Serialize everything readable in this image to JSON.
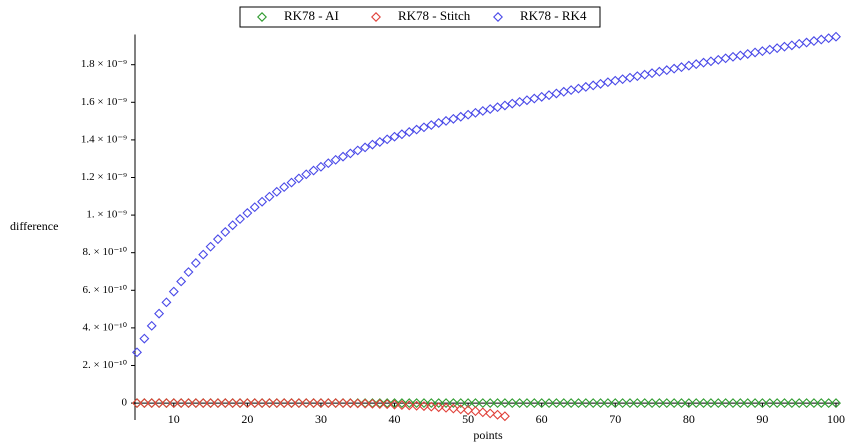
{
  "chart_data": {
    "type": "scatter",
    "xlabel": "points",
    "ylabel": "difference",
    "legend": "top",
    "x": [
      5,
      6,
      7,
      8,
      9,
      10,
      11,
      12,
      13,
      14,
      15,
      16,
      17,
      18,
      19,
      20,
      21,
      22,
      23,
      24,
      25,
      26,
      27,
      28,
      29,
      30,
      31,
      32,
      33,
      34,
      35,
      36,
      37,
      38,
      39,
      40,
      41,
      42,
      43,
      44,
      45,
      46,
      47,
      48,
      49,
      50,
      51,
      52,
      53,
      54,
      55,
      56,
      57,
      58,
      59,
      60,
      61,
      62,
      63,
      64,
      65,
      66,
      67,
      68,
      69,
      70,
      71,
      72,
      73,
      74,
      75,
      76,
      77,
      78,
      79,
      80,
      81,
      82,
      83,
      84,
      85,
      86,
      87,
      88,
      89,
      90,
      91,
      92,
      93,
      94,
      95,
      96,
      97,
      98,
      99,
      100
    ],
    "xlim": [
      5,
      100
    ],
    "xticks": [
      10,
      20,
      30,
      40,
      50,
      60,
      70,
      80,
      90,
      100
    ],
    "ylim": [
      -9e-11,
      1.95e-09
    ],
    "yticks": [
      0,
      {
        "value": 2e-10,
        "label": "2. × 10⁻¹⁰"
      },
      {
        "value": 4e-10,
        "label": "4. × 10⁻¹⁰"
      },
      {
        "value": 6e-10,
        "label": "6. × 10⁻¹⁰"
      },
      {
        "value": 8e-10,
        "label": "8. × 10⁻¹⁰"
      },
      {
        "value": 1e-09,
        "label": "1. × 10⁻⁹"
      },
      {
        "value": 1.2e-09,
        "label": "1.2 × 10⁻⁹"
      },
      {
        "value": 1.4e-09,
        "label": "1.4 × 10⁻⁹"
      },
      {
        "value": 1.6e-09,
        "label": "1.6 × 10⁻⁹"
      },
      {
        "value": 1.8e-09,
        "label": "1.8 × 10⁻⁹"
      }
    ],
    "series": [
      {
        "name": "RK78 - AI",
        "color": "#2e9b2e",
        "values": [
          0,
          0,
          0,
          0,
          0,
          0,
          0,
          0,
          0,
          0,
          0,
          0,
          0,
          0,
          0,
          0,
          0,
          0,
          0,
          0,
          0,
          0,
          0,
          0,
          0,
          0,
          0,
          0,
          0,
          0,
          0,
          0,
          0,
          0,
          0,
          0,
          0,
          0,
          0,
          0,
          0,
          0,
          0,
          0,
          0,
          0,
          0,
          0,
          0,
          0,
          0,
          0,
          0,
          0,
          0,
          0,
          0,
          0,
          0,
          0,
          0,
          0,
          0,
          0,
          0,
          0,
          0,
          0,
          0,
          0,
          0,
          0,
          0,
          0,
          0,
          0,
          0,
          0,
          0,
          0,
          0,
          0,
          0,
          0,
          0,
          0,
          0,
          0,
          0,
          0,
          0,
          0,
          0,
          0,
          0,
          0
        ]
      },
      {
        "name": "RK78 - Stitch",
        "color": "#e0413a",
        "values": [
          0,
          0,
          0,
          0,
          0,
          0,
          0,
          0,
          0,
          0,
          0,
          0,
          0,
          0,
          0,
          0,
          0,
          0,
          0,
          0,
          0,
          0,
          0,
          0,
          0,
          0,
          0,
          0,
          0,
          -1e-12,
          -2e-12,
          -3e-12,
          -4e-12,
          -5e-12,
          -6e-12,
          -8e-12,
          -1e-11,
          -1.2e-11,
          -1.4e-11,
          -1.6e-11,
          -1.9e-11,
          -2.2e-11,
          -2.5e-11,
          -2.9e-11,
          -3.3e-11,
          -3.8e-11,
          -4.3e-11,
          -4.9e-11,
          -5.5e-11,
          -6.2e-11,
          -7e-11,
          null,
          null,
          null,
          null,
          null,
          null,
          null,
          null,
          null,
          null,
          null,
          null,
          null,
          null,
          null,
          null,
          null,
          null,
          null,
          null,
          null,
          null,
          null,
          null,
          null,
          null,
          null,
          null,
          null,
          null,
          null,
          null,
          null,
          null,
          null,
          null,
          null,
          null,
          null,
          null,
          null,
          null,
          null,
          null,
          null
        ]
      },
      {
        "name": "RK78 - RK4",
        "color": "#4a4ae8",
        "values": [
          2.7e-10,
          3.43e-10,
          4.11e-10,
          4.76e-10,
          5.36e-10,
          5.93e-10,
          6.47e-10,
          6.97e-10,
          7.45e-10,
          7.9e-10,
          8.32e-10,
          8.72e-10,
          9.1e-10,
          9.46e-10,
          9.79e-10,
          1.011e-09,
          1.042e-09,
          1.071e-09,
          1.098e-09,
          1.124e-09,
          1.149e-09,
          1.173e-09,
          1.195e-09,
          1.217e-09,
          1.237e-09,
          1.257e-09,
          1.276e-09,
          1.294e-09,
          1.311e-09,
          1.328e-09,
          1.344e-09,
          1.36e-09,
          1.375e-09,
          1.389e-09,
          1.403e-09,
          1.417e-09,
          1.43e-09,
          1.442e-09,
          1.455e-09,
          1.467e-09,
          1.479e-09,
          1.49e-09,
          1.501e-09,
          1.512e-09,
          1.523e-09,
          1.534e-09,
          1.544e-09,
          1.554e-09,
          1.564e-09,
          1.574e-09,
          1.583e-09,
          1.593e-09,
          1.602e-09,
          1.611e-09,
          1.62e-09,
          1.629e-09,
          1.638e-09,
          1.647e-09,
          1.656e-09,
          1.665e-09,
          1.673e-09,
          1.682e-09,
          1.69e-09,
          1.698e-09,
          1.707e-09,
          1.715e-09,
          1.723e-09,
          1.731e-09,
          1.739e-09,
          1.747e-09,
          1.755e-09,
          1.763e-09,
          1.771e-09,
          1.779e-09,
          1.787e-09,
          1.795e-09,
          1.803e-09,
          1.811e-09,
          1.818e-09,
          1.826e-09,
          1.834e-09,
          1.842e-09,
          1.849e-09,
          1.857e-09,
          1.865e-09,
          1.872e-09,
          1.88e-09,
          1.888e-09,
          1.896e-09,
          1.903e-09,
          1.911e-09,
          1.918e-09,
          1.926e-09,
          1.934e-09,
          1.941e-09,
          1.949e-09
        ]
      }
    ]
  }
}
